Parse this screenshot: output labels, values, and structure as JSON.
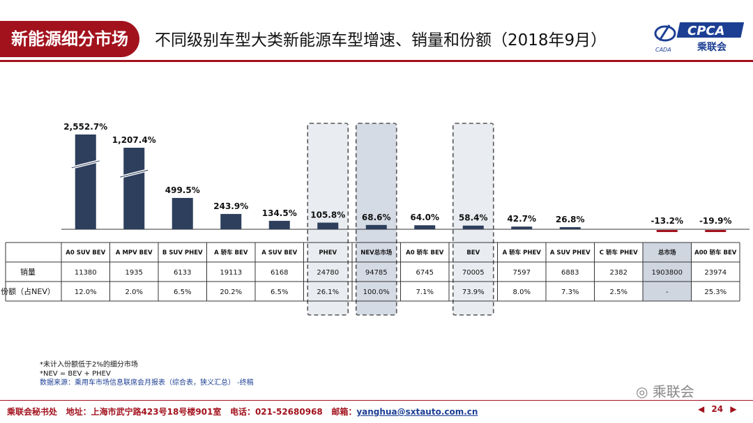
{
  "header": {
    "section_tag": "新能源细分市场",
    "title": "不同级别车型大类新能源车型增速、销量和份额（2018年9月）",
    "logo_left_text": "CADA",
    "logo_right_text": "CPCA",
    "logo_right_sub": "乘联会"
  },
  "chart_data": {
    "type": "bar",
    "title": "不同级别车型大类新能源车型增速、销量和份额（2018年9月）",
    "categories": [
      "A0 SUV BEV",
      "A MPV BEV",
      "B SUV PHEV",
      "A 轿车 BEV",
      "A SUV BEV",
      "PHEV",
      "NEV总市场",
      "A0 轿车 BEV",
      "BEV",
      "A 轿车 PHEV",
      "A SUV PHEV",
      "C 轿车 PHEV",
      "总市场",
      "A00 轿车 BEV"
    ],
    "growth_values": [
      2552.7,
      1207.4,
      499.5,
      243.9,
      134.5,
      105.8,
      68.6,
      64.0,
      58.4,
      42.7,
      26.8,
      0,
      -13.2,
      -19.9
    ],
    "growth_labels": [
      "2,552.7%",
      "1,207.4%",
      "499.5%",
      "243.9%",
      "134.5%",
      "105.8%",
      "68.6%",
      "64.0%",
      "58.4%",
      "42.7%",
      "26.8%",
      "",
      "-13.2%",
      "-19.9%"
    ],
    "broken_axis_bars": [
      0,
      1
    ],
    "highlighted_columns": [
      5,
      6,
      8
    ],
    "negative_color": "#a2121d",
    "bar_color": "#2d3f5c",
    "table": {
      "row_labels": [
        "销量",
        "份额（占NEV）"
      ],
      "sales": [
        "11380",
        "1935",
        "6133",
        "19113",
        "6168",
        "24780",
        "94785",
        "6745",
        "70005",
        "7597",
        "6883",
        "2382",
        "1903800",
        "23974"
      ],
      "share": [
        "12.0%",
        "2.0%",
        "6.5%",
        "20.2%",
        "6.5%",
        "26.1%",
        "100.0%",
        "7.1%",
        "73.9%",
        "8.0%",
        "7.3%",
        "2.5%",
        "-",
        "25.3%"
      ]
    }
  },
  "notes": {
    "line1": "*未计入份额低于2%的细分市场",
    "line2": "*NEV = BEV + PHEV",
    "line3": "数据来源：乘用车市场信息联席会月报表（综合表，狭义汇总）  -终稿"
  },
  "watermark": "乘联会",
  "footer": {
    "org": "乘联会秘书处",
    "address_label": "地址：",
    "address": "上海市武宁路423号18号楼901室",
    "phone_label": "电话：",
    "phone": "021-52680968",
    "email_label": "邮箱：",
    "email": "yanghua@sxtauto.com.cn",
    "page": "24",
    "prev": "◀",
    "next": "▶"
  }
}
